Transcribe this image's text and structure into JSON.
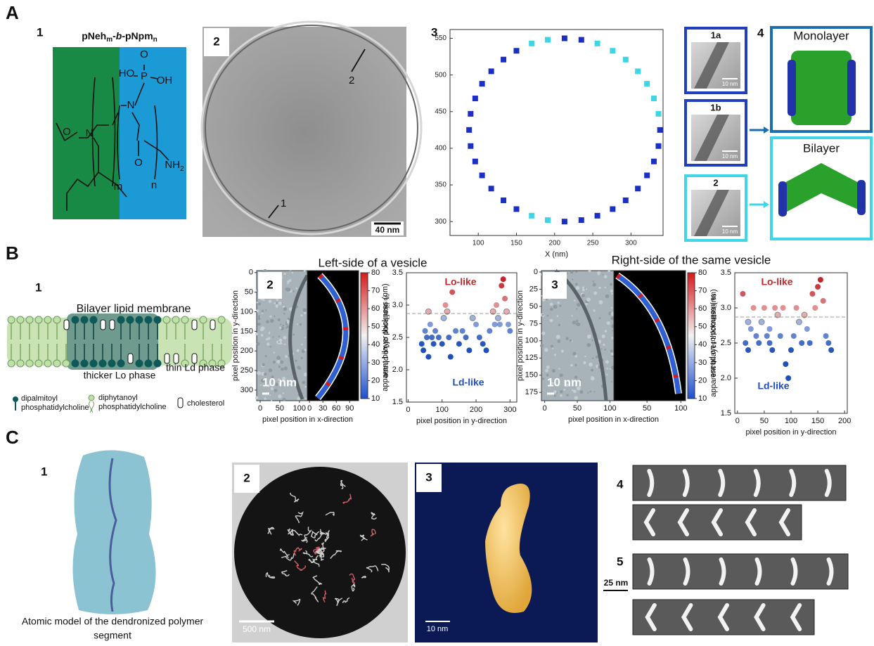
{
  "figure": {
    "A": {
      "label": "A",
      "p1": {
        "number": "1",
        "title": [
          "pNeh",
          "m",
          "-",
          "b",
          "-pNpm",
          "n"
        ],
        "atoms": {
          "o_top": "O",
          "ho": "HO",
          "p": "P",
          "oh": "OH",
          "n_left": "N",
          "n_right": "N",
          "o_left": "O",
          "o_amide": "O",
          "nh2": [
            "NH",
            "2"
          ],
          "m": "m",
          "n": "n"
        }
      },
      "p2": {
        "number": "2",
        "arrow_labels": [
          "2",
          "1"
        ],
        "scale_bar": "40 nm"
      },
      "p3": {
        "number": "3"
      },
      "p4": {
        "number": "4",
        "insets": [
          "1a",
          "1b",
          "2"
        ],
        "inset_scale_bar": "10 nm",
        "models": [
          "Monolayer",
          "Bilayer"
        ]
      }
    },
    "B": {
      "label": "B",
      "p1": {
        "number": "1",
        "title": "Bilayer lipid membrane",
        "lo_phase": "thicker Lo phase",
        "ld_phase": "thin Ld phase",
        "legend": [
          [
            "dipalmitoyl",
            "phosphatidylcholine"
          ],
          [
            "diphytanoyl",
            "phosphatidylcholine"
          ],
          [
            "cholesterol"
          ]
        ]
      },
      "p2": {
        "number": "2",
        "title": "Left-side of a vesicle",
        "scale_bar": "10 nm",
        "image_axes": {
          "ylabel": "pixel position in y-direction",
          "xlabel": "pixel position in x-direction",
          "ylim": [
            -5,
            327
          ],
          "yticks": [
            0,
            50,
            100,
            150,
            200,
            250,
            300
          ],
          "xlim": [
            -9,
            120
          ],
          "xticks": [
            0,
            50,
            100
          ],
          "map_xlim": [
            -5,
            110
          ],
          "map_xticks": [
            0,
            30,
            60,
            90
          ]
        },
        "colorbar": {
          "label": "% likelihood of Lo phase",
          "lim": [
            10,
            80
          ],
          "ticks": [
            10,
            20,
            30,
            40,
            50,
            60,
            70,
            80
          ]
        }
      },
      "p3": {
        "number": "3",
        "title": "Right-side of the same vesicle",
        "scale_bar": "10 nm",
        "image_axes": {
          "ylabel": "pixel position in y-direction",
          "xlabel": "pixel position in x-direction",
          "ylim": [
            -2,
            187
          ],
          "yticks": [
            0,
            25,
            50,
            75,
            100,
            125,
            150,
            175
          ],
          "xlim": [
            -5,
            106
          ],
          "xticks": [
            0,
            50,
            100
          ],
          "map_xlim": [
            1,
            107
          ],
          "map_xticks": [
            50,
            100
          ]
        },
        "colorbar": {
          "label": "% likelihood of Lo phase",
          "lim": [
            10,
            80
          ],
          "ticks": [
            10,
            20,
            30,
            40,
            50,
            60,
            70,
            80
          ]
        }
      }
    },
    "C": {
      "label": "C",
      "p1": {
        "number": "1",
        "caption": [
          "Atomic model of the dendronized polymer",
          "segment"
        ]
      },
      "p2": {
        "number": "2",
        "scale_bar": "500 nm"
      },
      "p3": {
        "number": "3",
        "scale_bar": "10 nm"
      },
      "p4": {
        "number": "4"
      },
      "p5": {
        "number": "5",
        "scale_bar": "25 nm"
      }
    }
  },
  "chart_data": [
    {
      "type": "scatter",
      "xlabel": "X (nm)",
      "xlim": [
        63,
        342
      ],
      "ylim": [
        281,
        562
      ],
      "xticks": [
        100,
        150,
        200,
        250,
        300
      ],
      "yticks": [
        300,
        350,
        400,
        450,
        500,
        550
      ],
      "series": [
        {
          "color": "#1b2fc4",
          "x": [
            338,
            235,
            213,
            150,
            133,
            117,
            105,
            96,
            90,
            88,
            90,
            96,
            105,
            117,
            133,
            150,
            213,
            235,
            256,
            276,
            293,
            309,
            321,
            330,
            336
          ],
          "values": [
            425,
            548,
            550,
            533,
            521,
            505,
            488,
            468,
            447,
            425,
            403,
            382,
            363,
            345,
            329,
            317,
            300,
            302,
            308,
            317,
            329,
            345,
            363,
            382,
            403
          ]
        },
        {
          "color": "#3ed6e6",
          "x": [
            336,
            330,
            321,
            309,
            293,
            276,
            256,
            191,
            170,
            170,
            191
          ],
          "values": [
            447,
            468,
            488,
            505,
            521,
            533,
            543,
            548,
            543,
            308,
            302
          ]
        }
      ]
    },
    {
      "type": "scatter",
      "xlabel": "pixel position in y-direction",
      "ylabel": "apparent bilayer thickness (nm)",
      "xlim": [
        -5,
        320
      ],
      "ylim": [
        1.5,
        3.5
      ],
      "xticks": [
        0,
        100,
        200,
        300
      ],
      "yticks": [
        1.5,
        {
          "value": 2,
          "label": "2.0"
        },
        2.5,
        {
          "value": 3,
          "label": "3.0"
        },
        3.5
      ],
      "reference_line": 2.87,
      "high_color": "#c0282d",
      "low_color": "#1f4fb8",
      "annotations": [
        "Lo-like",
        "Ld-like"
      ],
      "x": [
        40,
        45,
        50,
        55,
        60,
        65,
        70,
        75,
        80,
        90,
        100,
        105,
        110,
        115,
        120,
        125,
        130,
        140,
        150,
        160,
        170,
        180,
        190,
        200,
        210,
        220,
        230,
        240,
        250,
        255,
        260,
        265,
        270,
        275,
        280,
        285,
        290,
        295,
        300,
        60
      ],
      "values": [
        2.4,
        2.3,
        2.6,
        2.5,
        2.2,
        2.7,
        2.5,
        2.4,
        2.6,
        2.5,
        2.4,
        2.8,
        3.0,
        2.9,
        2.5,
        2.2,
        3.2,
        2.6,
        2.4,
        2.6,
        2.5,
        2.3,
        2.8,
        2.7,
        2.5,
        2.4,
        2.3,
        2.6,
        2.9,
        2.7,
        3.0,
        2.8,
        2.7,
        3.3,
        3.4,
        3.1,
        2.9,
        2.7,
        2.6,
        2.9
      ]
    },
    {
      "type": "scatter",
      "xlabel": "pixel position in y-direction",
      "ylabel": "apparent bilayer thickness (nm)",
      "xlim": [
        -5,
        205
      ],
      "ylim": [
        1.5,
        3.5
      ],
      "xticks": [
        0,
        50,
        100,
        150,
        200
      ],
      "yticks": [
        1.5,
        {
          "value": 2,
          "label": "2.0"
        },
        2.5,
        {
          "value": 3,
          "label": "3.0"
        },
        3.5
      ],
      "reference_line": 2.87,
      "high_color": "#c0282d",
      "low_color": "#1f4fb8",
      "annotations": [
        "Lo-like",
        "Ld-like"
      ],
      "x": [
        10,
        15,
        20,
        25,
        30,
        35,
        40,
        45,
        50,
        55,
        60,
        65,
        70,
        75,
        80,
        85,
        90,
        95,
        100,
        105,
        110,
        115,
        120,
        125,
        130,
        135,
        140,
        145,
        150,
        155,
        160,
        165,
        170,
        175,
        20,
        60
      ],
      "values": [
        3.2,
        2.5,
        2.4,
        2.7,
        3.0,
        2.6,
        2.5,
        2.8,
        3.0,
        2.6,
        2.7,
        2.4,
        3.0,
        2.9,
        2.6,
        3.0,
        2.2,
        2.0,
        2.4,
        2.6,
        3.0,
        2.8,
        2.5,
        2.9,
        2.7,
        2.5,
        3.2,
        3.0,
        3.3,
        3.4,
        3.1,
        2.6,
        2.5,
        2.4,
        2.8,
        2.5
      ]
    }
  ]
}
